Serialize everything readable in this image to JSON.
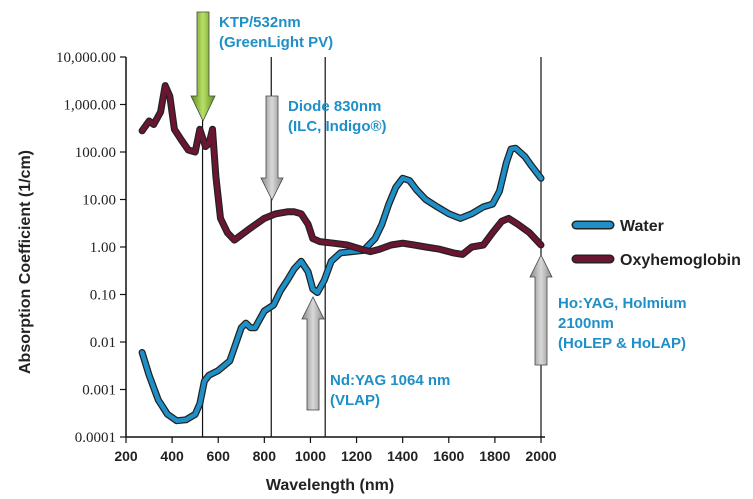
{
  "chart_data": {
    "type": "line",
    "xlabel": "Wavelength (nm)",
    "ylabel": "Absorption Coefficient (1/cm)",
    "y_scale": "log",
    "xlim": [
      200,
      2000
    ],
    "ylim": [
      0.0001,
      10000
    ],
    "x_ticks": [
      "200",
      "400",
      "600",
      "800",
      "1000",
      "1200",
      "1400",
      "1600",
      "1800",
      "2000"
    ],
    "y_ticks": [
      "10,000.00",
      "1,000.00",
      "100.00",
      "10.00",
      "1.00",
      "0.10",
      "0.01",
      "0.001",
      "0.0001"
    ],
    "grid": false,
    "legend_position": "right",
    "series": [
      {
        "name": "Water",
        "color": "#1f8fc8",
        "points": [
          [
            270,
            0.006
          ],
          [
            300,
            0.002
          ],
          [
            340,
            0.0006
          ],
          [
            380,
            0.0003
          ],
          [
            420,
            0.00022
          ],
          [
            460,
            0.00023
          ],
          [
            500,
            0.0003
          ],
          [
            520,
            0.0005
          ],
          [
            540,
            0.0015
          ],
          [
            560,
            0.002
          ],
          [
            600,
            0.0025
          ],
          [
            650,
            0.004
          ],
          [
            700,
            0.02
          ],
          [
            720,
            0.025
          ],
          [
            740,
            0.02
          ],
          [
            760,
            0.02
          ],
          [
            780,
            0.03
          ],
          [
            800,
            0.045
          ],
          [
            840,
            0.06
          ],
          [
            870,
            0.12
          ],
          [
            900,
            0.2
          ],
          [
            930,
            0.35
          ],
          [
            960,
            0.5
          ],
          [
            990,
            0.3
          ],
          [
            1010,
            0.13
          ],
          [
            1030,
            0.11
          ],
          [
            1060,
            0.2
          ],
          [
            1090,
            0.5
          ],
          [
            1130,
            0.75
          ],
          [
            1180,
            0.8
          ],
          [
            1230,
            0.85
          ],
          [
            1280,
            1.5
          ],
          [
            1310,
            3
          ],
          [
            1340,
            8
          ],
          [
            1370,
            18
          ],
          [
            1400,
            28
          ],
          [
            1430,
            25
          ],
          [
            1460,
            16
          ],
          [
            1500,
            10
          ],
          [
            1550,
            7
          ],
          [
            1600,
            5
          ],
          [
            1650,
            4
          ],
          [
            1700,
            5
          ],
          [
            1750,
            7
          ],
          [
            1790,
            8
          ],
          [
            1820,
            15
          ],
          [
            1850,
            60
          ],
          [
            1870,
            115
          ],
          [
            1890,
            120
          ],
          [
            1930,
            80
          ],
          [
            1960,
            50
          ],
          [
            2000,
            28
          ]
        ]
      },
      {
        "name": "Oxyhemoglobin",
        "color": "#6b1533",
        "points": [
          [
            270,
            280
          ],
          [
            300,
            450
          ],
          [
            320,
            380
          ],
          [
            350,
            700
          ],
          [
            370,
            2500
          ],
          [
            390,
            1500
          ],
          [
            410,
            300
          ],
          [
            440,
            180
          ],
          [
            470,
            110
          ],
          [
            500,
            100
          ],
          [
            520,
            300
          ],
          [
            545,
            130
          ],
          [
            560,
            150
          ],
          [
            575,
            300
          ],
          [
            590,
            30
          ],
          [
            610,
            4
          ],
          [
            640,
            2
          ],
          [
            670,
            1.4
          ],
          [
            700,
            1.8
          ],
          [
            740,
            2.5
          ],
          [
            800,
            4
          ],
          [
            850,
            5
          ],
          [
            900,
            5.5
          ],
          [
            930,
            5.5
          ],
          [
            960,
            5
          ],
          [
            990,
            3
          ],
          [
            1010,
            1.5
          ],
          [
            1040,
            1.3
          ],
          [
            1100,
            1.2
          ],
          [
            1160,
            1.1
          ],
          [
            1220,
            0.9
          ],
          [
            1260,
            0.8
          ],
          [
            1300,
            0.9
          ],
          [
            1350,
            1.1
          ],
          [
            1400,
            1.2
          ],
          [
            1450,
            1.1
          ],
          [
            1500,
            1.0
          ],
          [
            1560,
            0.9
          ],
          [
            1620,
            0.75
          ],
          [
            1660,
            0.7
          ],
          [
            1700,
            1.0
          ],
          [
            1750,
            1.1
          ],
          [
            1790,
            2
          ],
          [
            1830,
            3.5
          ],
          [
            1860,
            4
          ],
          [
            1900,
            3
          ],
          [
            1950,
            2
          ],
          [
            1980,
            1.4
          ],
          [
            2000,
            1.1
          ]
        ]
      }
    ],
    "vertical_lines_x": [
      532,
      830,
      1064,
      2100
    ],
    "annotations": [
      {
        "lines": [
          "KTP/532nm",
          "(GreenLight PV)"
        ],
        "x": 532,
        "arrow": "down",
        "color": "#8dc63f"
      },
      {
        "lines": [
          "Diode 830nm",
          "(ILC, Indigo®)"
        ],
        "x": 830,
        "arrow": "down",
        "color": "#b3b3b3"
      },
      {
        "lines": [
          "Nd:YAG 1064 nm",
          "(VLAP)"
        ],
        "x": 1064,
        "arrow": "up",
        "color": "#b3b3b3"
      },
      {
        "lines": [
          "Ho:YAG, Holmium",
          "2100nm",
          "(HoLEP & HoLAP)"
        ],
        "x": 2100,
        "arrow": "up",
        "color": "#b3b3b3"
      }
    ]
  }
}
